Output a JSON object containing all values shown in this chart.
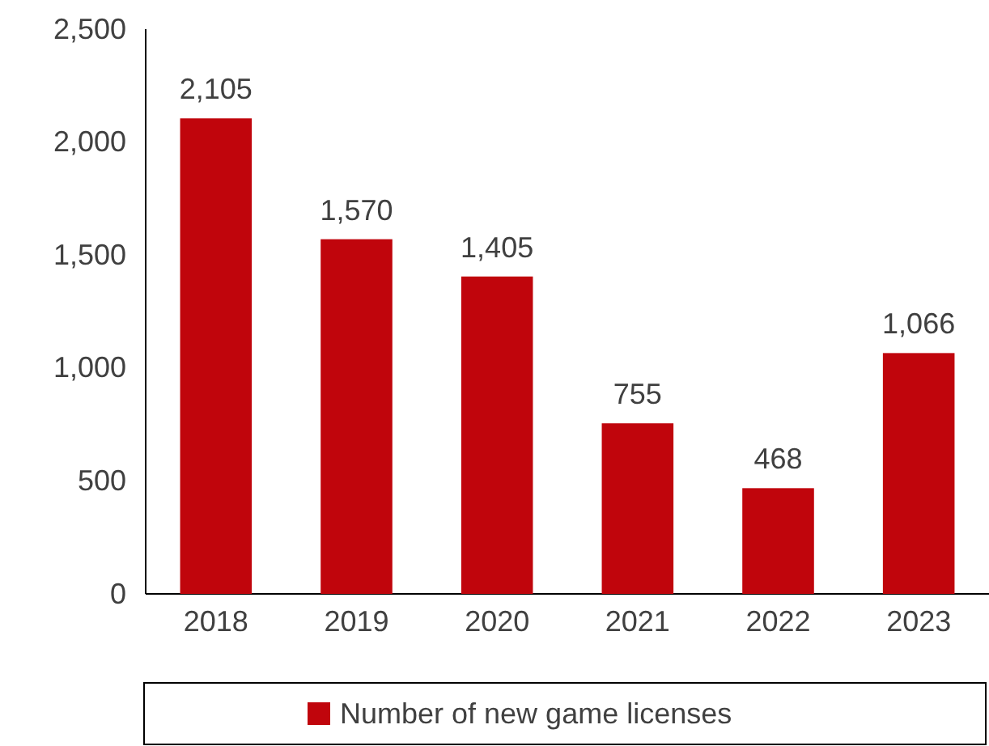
{
  "chart_data": {
    "type": "bar",
    "categories": [
      "2018",
      "2019",
      "2020",
      "2021",
      "2022",
      "2023"
    ],
    "series": [
      {
        "name": "Number of new game licenses",
        "color": "#c0050c",
        "values": [
          2105,
          1570,
          1405,
          755,
          468,
          1066
        ],
        "value_labels": [
          "2,105",
          "1,570",
          "1,405",
          "755",
          "468",
          "1,066"
        ]
      }
    ],
    "ylim": [
      0,
      2500
    ],
    "yticks": [
      0,
      {
        "value": 500,
        "label": "500"
      },
      {
        "value": 1000,
        "label": "1,000"
      },
      {
        "value": 1500,
        "label": "1,500"
      },
      {
        "value": 2000,
        "label": "2,000"
      },
      {
        "value": 2500,
        "label": "2,500"
      }
    ],
    "legend": "bottom",
    "grid": false
  }
}
